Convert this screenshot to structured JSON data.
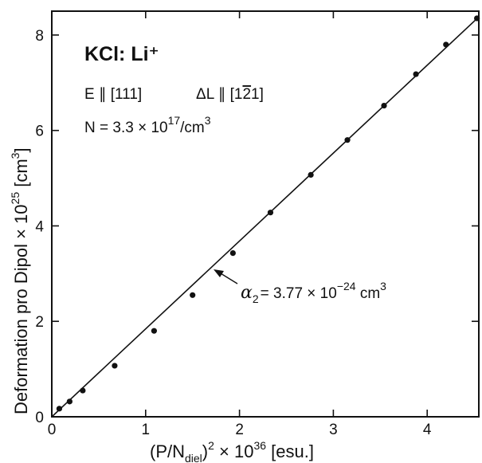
{
  "chart_data": {
    "type": "scatter",
    "title": "KCl: Li⁺",
    "xlabel": {
      "main": "(P/N",
      "sub": "diel",
      "close": ")",
      "power": "2",
      "rest": " × 10",
      "exp": "36",
      "unit": " [esu.]"
    },
    "ylabel": {
      "main": "Deformation pro Dipol × 10",
      "exp": "25",
      "unit": " [cm",
      "unit_exp": "3",
      "close": "]"
    },
    "xlim": [
      0,
      4.55
    ],
    "ylim": [
      0,
      8.5
    ],
    "xticks": [
      0,
      1,
      2,
      3,
      4
    ],
    "yticks": [
      0,
      2,
      4,
      6,
      8
    ],
    "grid": false,
    "annotations": {
      "line1_left": "E ∥ [111]",
      "line1_right": "ΔL ∥ [1",
      "line1_right_bar": "2",
      "line1_right_end": "1]",
      "line2": "N = 3.3 × 10",
      "line2_exp": "17",
      "line2_unit": "/cm",
      "line2_unit_exp": "3",
      "alpha_symbol": "α",
      "alpha_sub": "2",
      "alpha_text": "=  3.77 × 10",
      "alpha_exp": "−24",
      "alpha_unit": " cm",
      "alpha_unit_exp": "3"
    },
    "series": [
      {
        "x": [
          0.08,
          0.19,
          0.33,
          0.67,
          1.09,
          1.5,
          1.93,
          2.33,
          2.76,
          3.15,
          3.54,
          3.88,
          4.2,
          4.53
        ],
        "y": [
          0.17,
          0.32,
          0.55,
          1.07,
          1.8,
          2.55,
          3.43,
          4.28,
          5.07,
          5.8,
          6.52,
          7.18,
          7.8,
          8.35
        ]
      }
    ],
    "fit_line": {
      "x": [
        0,
        4.55
      ],
      "y": [
        0,
        8.38
      ]
    }
  }
}
